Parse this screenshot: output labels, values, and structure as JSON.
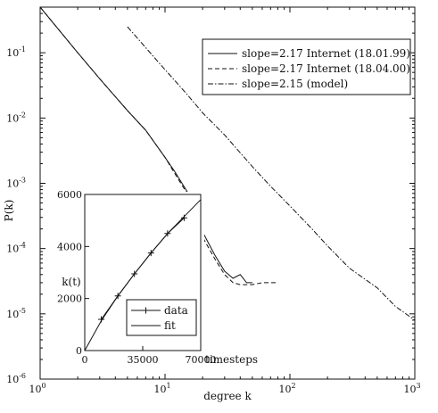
{
  "chart_data": [
    {
      "type": "line",
      "scale": "log-log",
      "xlabel": "degree k",
      "ylabel": "P(k)",
      "xlim": [
        1,
        1000
      ],
      "ylim": [
        1e-06,
        0.5
      ],
      "x_ticks": [
        {
          "base": "10",
          "exp": "0"
        },
        {
          "base": "10",
          "exp": "1"
        },
        {
          "base": "10",
          "exp": "2"
        },
        {
          "base": "10",
          "exp": "3"
        }
      ],
      "y_ticks": [
        {
          "base": "10",
          "exp": "-6"
        },
        {
          "base": "10",
          "exp": "-5"
        },
        {
          "base": "10",
          "exp": "-4"
        },
        {
          "base": "10",
          "exp": "-3"
        },
        {
          "base": "10",
          "exp": "-2"
        },
        {
          "base": "10",
          "exp": "-1"
        }
      ],
      "legend_position": "top-right",
      "series": [
        {
          "name": "slope=2.17 Internet (18.01.99)",
          "style": "solid",
          "x": [
            1,
            2,
            3,
            5,
            7,
            10,
            12,
            15,
            18,
            20,
            25,
            30,
            35,
            40,
            45,
            50
          ],
          "y": [
            0.5,
            0.1,
            0.04,
            0.013,
            0.0065,
            0.0025,
            0.0015,
            0.00075,
            0.00035,
            0.00018,
            8e-05,
            4.5e-05,
            3.5e-05,
            4e-05,
            3e-05,
            3e-05
          ]
        },
        {
          "name": "slope=2.17 Internet (18.04.00)",
          "style": "dashed",
          "x": [
            1,
            2,
            3,
            5,
            7,
            10,
            12,
            15,
            18,
            20,
            25,
            30,
            35,
            40,
            50,
            60,
            80
          ],
          "y": [
            0.5,
            0.1,
            0.04,
            0.013,
            0.0065,
            0.0025,
            0.0014,
            0.0007,
            0.00035,
            0.00015,
            7e-05,
            4e-05,
            3e-05,
            2.8e-05,
            2.8e-05,
            3e-05,
            3e-05
          ]
        },
        {
          "name": "slope=2.15 (model)",
          "style": "dash-dot",
          "x": [
            5,
            7,
            10,
            15,
            20,
            30,
            50,
            70,
            100,
            150,
            200,
            300,
            500,
            700,
            1000
          ],
          "y": [
            0.25,
            0.12,
            0.055,
            0.023,
            0.012,
            0.0055,
            0.0018,
            0.0009,
            0.00045,
            0.0002,
            0.00011,
            5e-05,
            2.5e-05,
            1.3e-05,
            8e-06
          ]
        }
      ]
    },
    {
      "type": "line",
      "xlabel": "timesteps",
      "ylabel": "k(t)",
      "xlim": [
        0,
        70000
      ],
      "ylim": [
        0,
        6000
      ],
      "x_ticks": [
        "0",
        "35000",
        "70000"
      ],
      "y_ticks": [
        "0",
        "2000",
        "4000",
        "6000"
      ],
      "legend_position": "bottom-right",
      "series": [
        {
          "name": "data",
          "style": "plus-markers",
          "x": [
            10000,
            20000,
            30000,
            40000,
            50000,
            60000
          ],
          "y": [
            1200,
            2100,
            2950,
            3750,
            4500,
            5100
          ]
        },
        {
          "name": "fit",
          "style": "solid",
          "x": [
            0,
            10000,
            20000,
            30000,
            40000,
            50000,
            60000,
            70000
          ],
          "y": [
            0,
            1150,
            2100,
            2950,
            3750,
            4500,
            5150,
            5800
          ]
        }
      ]
    }
  ]
}
